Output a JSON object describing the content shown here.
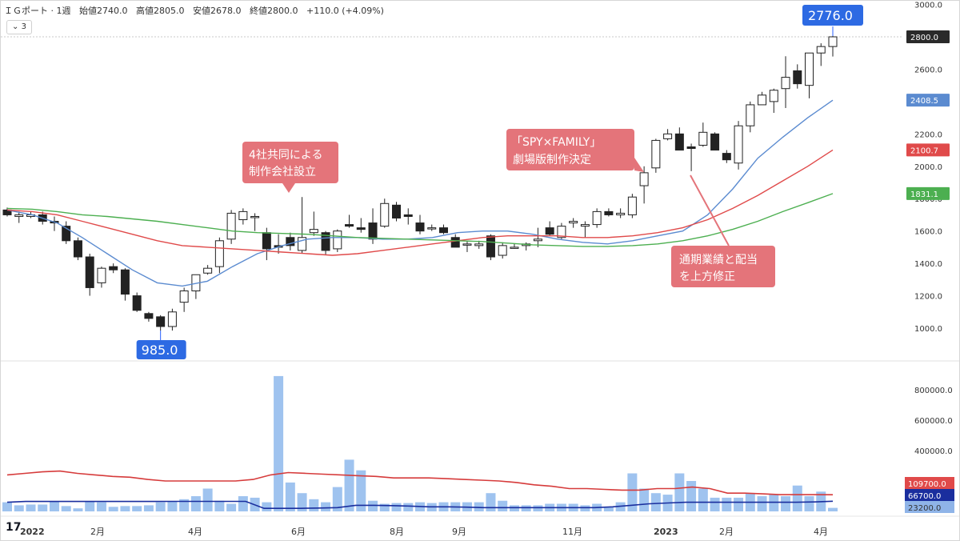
{
  "header": {
    "symbol": "ＩＧポート · 1週",
    "open": "始値2740.0",
    "high": "高値2805.0",
    "low": "安値2678.0",
    "close": "終値2800.0",
    "change": "+110.0 (+4.09%)",
    "collapse_label": "⌄ 3"
  },
  "chart_data": [
    {
      "type": "candlestick",
      "title": "",
      "y_ticks": [
        1000,
        1200,
        1400,
        1600,
        1800,
        2000,
        2200,
        2400,
        2600,
        2800,
        3000
      ],
      "y_tick_labels": [
        "1000.0",
        "1200.0",
        "1400.0",
        "1600.0",
        "1800.0",
        "2000.0",
        "2200.0",
        "2400.0",
        "2600.0",
        "2800.0",
        "3000.0"
      ],
      "ylim": [
        800,
        3000
      ],
      "price_labels": [
        {
          "text": "2800.0",
          "value": 2800,
          "color": "#2a2a2a"
        },
        {
          "text": "2408.5",
          "value": 2408.5,
          "color": "#5b8bd0"
        },
        {
          "text": "2100.7",
          "value": 2100.7,
          "color": "#e04a4a"
        },
        {
          "text": "1831.1",
          "value": 1831.1,
          "color": "#4caf50"
        }
      ],
      "candles": [
        [
          1730,
          1745,
          1690,
          1700
        ],
        [
          1690,
          1720,
          1650,
          1700
        ],
        [
          1690,
          1720,
          1680,
          1700
        ],
        [
          1700,
          1720,
          1640,
          1660
        ],
        [
          1660,
          1690,
          1600,
          1650
        ],
        [
          1630,
          1660,
          1520,
          1540
        ],
        [
          1540,
          1560,
          1420,
          1440
        ],
        [
          1440,
          1460,
          1200,
          1250
        ],
        [
          1280,
          1380,
          1250,
          1370
        ],
        [
          1380,
          1400,
          1340,
          1360
        ],
        [
          1360,
          1370,
          1170,
          1210
        ],
        [
          1200,
          1220,
          1100,
          1110
        ],
        [
          1090,
          1100,
          1040,
          1060
        ],
        [
          1070,
          1080,
          985,
          1010
        ],
        [
          1010,
          1120,
          985,
          1100
        ],
        [
          1160,
          1250,
          1100,
          1230
        ],
        [
          1230,
          1330,
          1180,
          1330
        ],
        [
          1340,
          1390,
          1330,
          1370
        ],
        [
          1380,
          1560,
          1340,
          1540
        ],
        [
          1550,
          1730,
          1520,
          1710
        ],
        [
          1670,
          1740,
          1640,
          1720
        ],
        [
          1690,
          1710,
          1600,
          1690
        ],
        [
          1590,
          1620,
          1420,
          1490
        ],
        [
          1510,
          1580,
          1460,
          1500
        ],
        [
          1560,
          1590,
          1480,
          1510
        ],
        [
          1480,
          1810,
          1460,
          1560
        ],
        [
          1590,
          1720,
          1570,
          1610
        ],
        [
          1590,
          1600,
          1450,
          1480
        ],
        [
          1490,
          1610,
          1470,
          1600
        ],
        [
          1640,
          1700,
          1620,
          1630
        ],
        [
          1620,
          1680,
          1590,
          1610
        ],
        [
          1650,
          1740,
          1520,
          1550
        ],
        [
          1630,
          1800,
          1620,
          1770
        ],
        [
          1760,
          1780,
          1660,
          1680
        ],
        [
          1700,
          1740,
          1640,
          1690
        ],
        [
          1650,
          1700,
          1580,
          1600
        ],
        [
          1620,
          1640,
          1600,
          1620
        ],
        [
          1620,
          1640,
          1580,
          1590
        ],
        [
          1560,
          1580,
          1500,
          1500
        ],
        [
          1520,
          1540,
          1470,
          1520
        ],
        [
          1510,
          1540,
          1490,
          1520
        ],
        [
          1570,
          1580,
          1420,
          1440
        ],
        [
          1450,
          1530,
          1430,
          1510
        ],
        [
          1500,
          1520,
          1490,
          1500
        ],
        [
          1510,
          1530,
          1480,
          1520
        ],
        [
          1540,
          1620,
          1500,
          1550
        ],
        [
          1620,
          1660,
          1570,
          1580
        ],
        [
          1560,
          1650,
          1550,
          1630
        ],
        [
          1650,
          1680,
          1620,
          1660
        ],
        [
          1630,
          1660,
          1560,
          1640
        ],
        [
          1640,
          1740,
          1620,
          1720
        ],
        [
          1720,
          1740,
          1690,
          1700
        ],
        [
          1700,
          1740,
          1680,
          1710
        ],
        [
          1700,
          1830,
          1680,
          1810
        ],
        [
          1880,
          2000,
          1770,
          1960
        ],
        [
          1990,
          2170,
          1960,
          2160
        ],
        [
          2170,
          2230,
          2160,
          2200
        ],
        [
          2200,
          2240,
          2100,
          2100
        ],
        [
          2120,
          2140,
          1970,
          2110
        ],
        [
          2130,
          2270,
          2120,
          2210
        ],
        [
          2200,
          2210,
          2100,
          2100
        ],
        [
          2080,
          2100,
          2020,
          2040
        ],
        [
          2020,
          2280,
          1980,
          2250
        ],
        [
          2250,
          2400,
          2210,
          2380
        ],
        [
          2380,
          2460,
          2380,
          2440
        ],
        [
          2400,
          2480,
          2330,
          2470
        ],
        [
          2480,
          2680,
          2360,
          2550
        ],
        [
          2590,
          2630,
          2480,
          2510
        ],
        [
          2500,
          2700,
          2420,
          2700
        ],
        [
          2700,
          2760,
          2620,
          2740
        ],
        [
          2740,
          2805,
          2678,
          2800
        ]
      ],
      "moving_averages": [
        {
          "color": "#5b8bd0",
          "values": [
            1730,
            1700,
            1650,
            1560,
            1460,
            1360,
            1280,
            1260,
            1290,
            1380,
            1460,
            1510,
            1550,
            1560,
            1560,
            1550,
            1550,
            1560,
            1590,
            1600,
            1600,
            1580,
            1550,
            1530,
            1520,
            1540,
            1570,
            1600,
            1700,
            1860,
            2050,
            2180,
            2300,
            2408.5
          ]
        },
        {
          "color": "#e04a4a",
          "values": [
            1730,
            1720,
            1700,
            1660,
            1620,
            1580,
            1540,
            1510,
            1500,
            1490,
            1480,
            1470,
            1460,
            1450,
            1460,
            1480,
            1500,
            1520,
            1540,
            1560,
            1570,
            1570,
            1570,
            1560,
            1560,
            1570,
            1590,
            1620,
            1670,
            1740,
            1820,
            1910,
            2000,
            2100.7
          ]
        },
        {
          "color": "#4caf50",
          "values": [
            1740,
            1735,
            1720,
            1700,
            1690,
            1675,
            1660,
            1640,
            1620,
            1600,
            1590,
            1585,
            1580,
            1570,
            1560,
            1555,
            1550,
            1545,
            1540,
            1535,
            1525,
            1515,
            1510,
            1505,
            1505,
            1510,
            1520,
            1540,
            1570,
            1610,
            1660,
            1720,
            1775,
            1831.1
          ]
        }
      ],
      "annotations": [
        {
          "text": "985.0",
          "value": 985
        },
        {
          "text": "2776.0",
          "value": 2776
        }
      ],
      "callouts": [
        {
          "lines": [
            "4社共同による",
            "制作会社設立"
          ]
        },
        {
          "lines": [
            "「SPY×FAMILY」",
            "劇場版制作決定"
          ]
        },
        {
          "lines": [
            "通期業績と配当",
            "を上方修正"
          ]
        }
      ]
    },
    {
      "type": "bar",
      "title": "",
      "y_ticks": [
        200000,
        400000,
        600000,
        800000
      ],
      "y_tick_labels": [
        "200000.0",
        "400000.0",
        "600000.0",
        "800000.0"
      ],
      "ylim": [
        0,
        900000
      ],
      "volumes": [
        60000,
        40000,
        45000,
        45000,
        65000,
        35000,
        20000,
        65000,
        60000,
        30000,
        35000,
        35000,
        40000,
        60000,
        65000,
        80000,
        100000,
        150000,
        70000,
        50000,
        100000,
        90000,
        60000,
        890000,
        190000,
        120000,
        80000,
        60000,
        160000,
        340000,
        270000,
        70000,
        50000,
        55000,
        55000,
        60000,
        55000,
        60000,
        60000,
        60000,
        60000,
        120000,
        70000,
        40000,
        40000,
        40000,
        50000,
        50000,
        50000,
        40000,
        50000,
        30000,
        60000,
        250000,
        150000,
        120000,
        110000,
        250000,
        200000,
        150000,
        90000,
        90000,
        90000,
        120000,
        100000,
        110000,
        100000,
        170000,
        100000,
        130000,
        23200
      ],
      "moving_averages": [
        {
          "color": "#d63b3b",
          "name": "",
          "values": [
            240000,
            250000,
            260000,
            265000,
            250000,
            240000,
            230000,
            225000,
            210000,
            200000,
            200000,
            200000,
            200000,
            200000,
            210000,
            240000,
            255000,
            250000,
            245000,
            240000,
            235000,
            230000,
            220000,
            220000,
            220000,
            215000,
            210000,
            205000,
            200000,
            190000,
            175000,
            165000,
            150000,
            150000,
            145000,
            140000,
            140000,
            150000,
            150000,
            160000,
            150000,
            120000,
            120000,
            115000,
            110000,
            110000,
            110000,
            109700
          ]
        },
        {
          "color": "#1a2e9e",
          "name": "",
          "values": [
            60000,
            65000,
            65000,
            65000,
            65000,
            65000,
            65000,
            65000,
            65000,
            66000,
            66000,
            66000,
            66000,
            66000,
            20000,
            20000,
            20000,
            22000,
            25000,
            40000,
            40000,
            38000,
            35000,
            30000,
            30000,
            28000,
            25000,
            25000,
            25000,
            25000,
            25000,
            25000,
            25000,
            30000,
            40000,
            50000,
            55000,
            60000,
            60000,
            60000,
            60000,
            60000,
            60000,
            60000,
            62000,
            66700
          ]
        }
      ],
      "value_labels": [
        {
          "text": "109700.0",
          "color": "#e04a4a"
        },
        {
          "text": "66700.0",
          "color": "#1a2e9e"
        },
        {
          "text": "23200.0",
          "color": "#8fb4e8"
        }
      ]
    }
  ],
  "x_axis": {
    "labels": [
      "2022",
      "2月",
      "4月",
      "6月",
      "8月",
      "9月",
      "11月",
      "2023",
      "2月",
      "4月"
    ],
    "bold": [
      true,
      false,
      false,
      false,
      false,
      false,
      false,
      true,
      false,
      false
    ]
  },
  "logo_text": "17"
}
